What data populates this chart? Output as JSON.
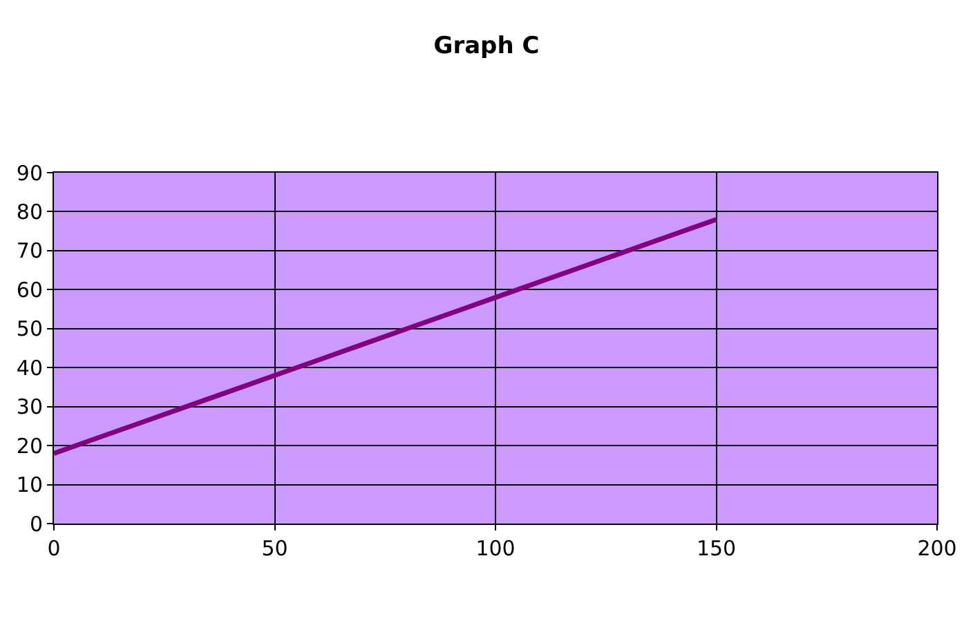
{
  "chart_data": {
    "type": "line",
    "title": "Graph C",
    "x": [
      0,
      10,
      20,
      30,
      40,
      50,
      60,
      70,
      80,
      90,
      100,
      110,
      120,
      130,
      140,
      150
    ],
    "series": [
      {
        "color": "#800080",
        "values": [
          18,
          22,
          26,
          30,
          34,
          38,
          42,
          46,
          50,
          54,
          58,
          62,
          66,
          70,
          74,
          78
        ]
      }
    ],
    "xlim": [
      0,
      200
    ],
    "xticks": [
      0,
      50,
      100,
      150,
      200
    ],
    "ylim": [
      0,
      90
    ],
    "yticks": [
      0,
      10,
      20,
      30,
      40,
      50,
      60,
      70,
      80,
      90
    ],
    "grid": true,
    "legend": false,
    "marker": "none",
    "line_style": "solid"
  }
}
